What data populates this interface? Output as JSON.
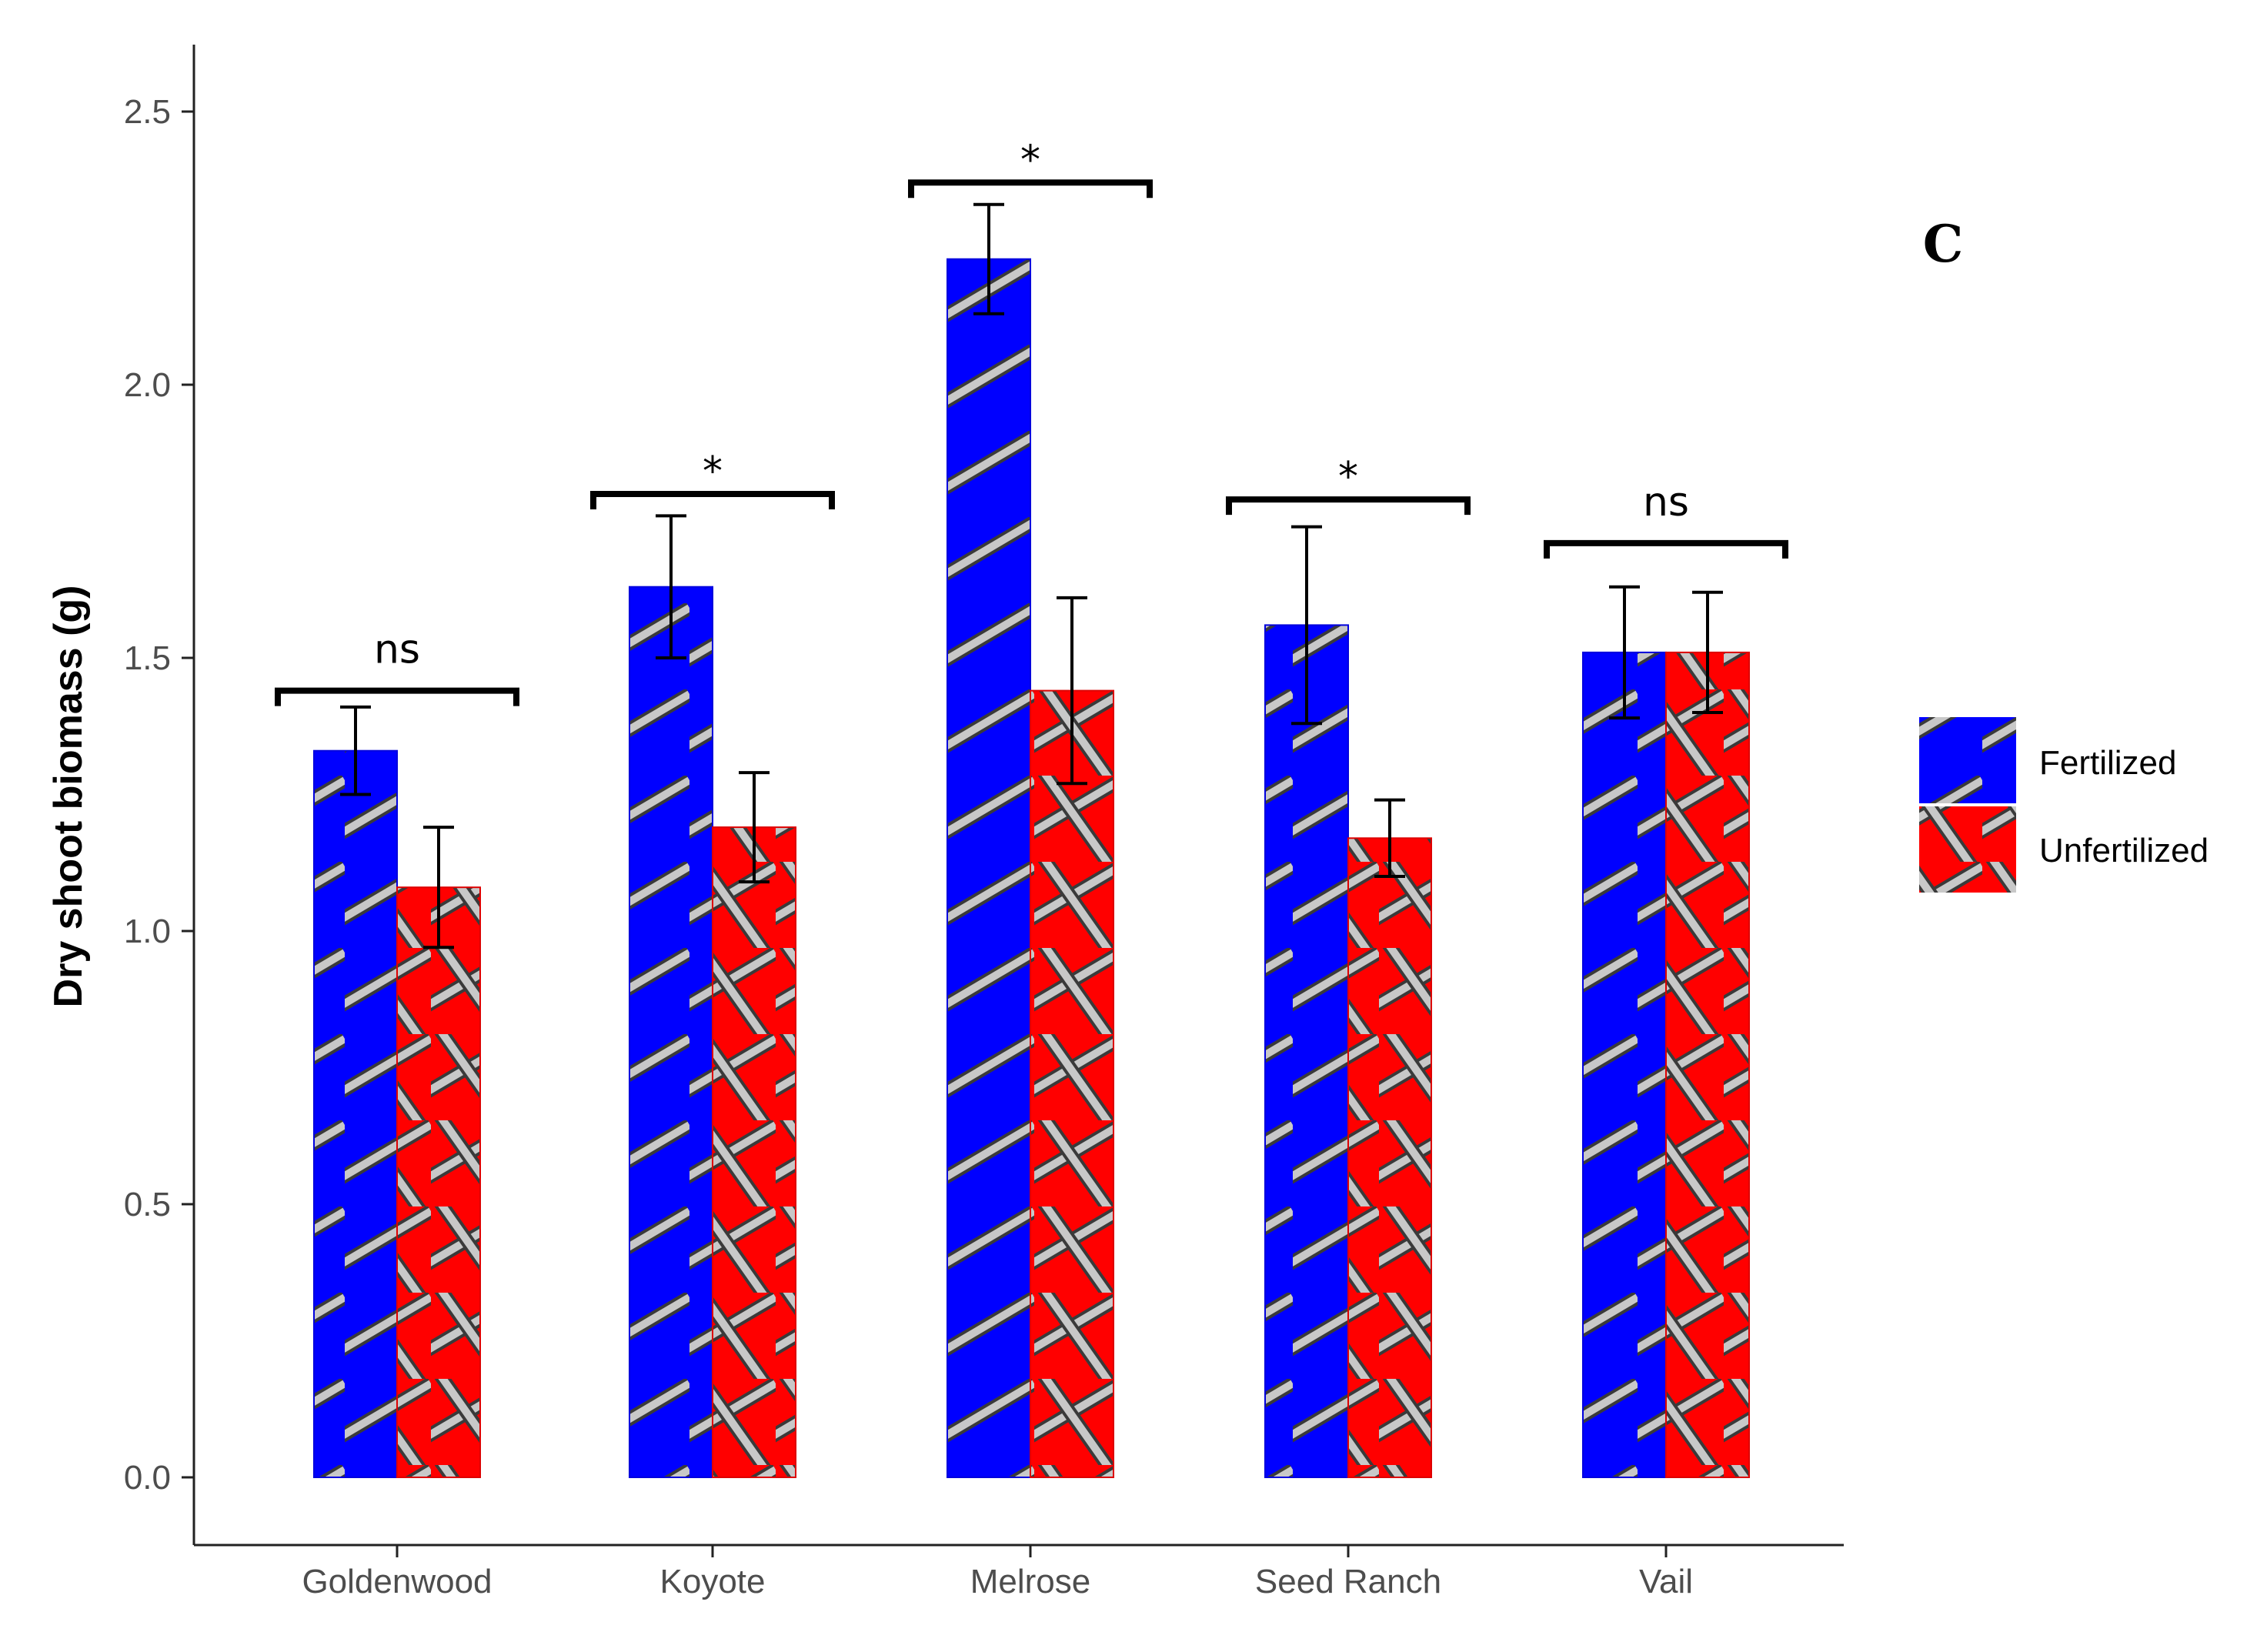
{
  "chart_data": {
    "type": "bar",
    "title": "",
    "panel_label": "C",
    "xlabel": "",
    "ylabel": "Dry shoot biomass (g)",
    "ylim": [
      0,
      2.5
    ],
    "yticks": [
      0.0,
      0.5,
      1.0,
      1.5,
      2.0,
      2.5
    ],
    "ytick_labels": [
      "0.0",
      "0.5",
      "1.0",
      "1.5",
      "2.0",
      "2.5"
    ],
    "categories": [
      "Goldenwood",
      "Koyote",
      "Melrose",
      "Seed Ranch",
      "Vail"
    ],
    "series": [
      {
        "name": "Fertilized",
        "color": "#0000ff",
        "pattern": "stripe",
        "values": [
          1.33,
          1.63,
          2.23,
          1.56,
          1.51
        ],
        "errors": [
          0.08,
          0.13,
          0.1,
          0.18,
          0.12
        ]
      },
      {
        "name": "Unfertilized",
        "color": "#ff0000",
        "pattern": "crosshatch",
        "values": [
          1.08,
          1.19,
          1.44,
          1.17,
          1.51
        ],
        "errors": [
          0.11,
          0.1,
          0.17,
          0.07,
          0.11
        ]
      }
    ],
    "significance": [
      {
        "category": "Goldenwood",
        "label": "ns",
        "level": 1.44
      },
      {
        "category": "Koyote",
        "label": "*",
        "level": 1.8
      },
      {
        "category": "Melrose",
        "label": "*",
        "level": 2.37
      },
      {
        "category": "Seed Ranch",
        "label": "*",
        "level": 1.79
      },
      {
        "category": "Vail",
        "label": "ns",
        "level": 1.71
      }
    ],
    "legend": {
      "position": "right",
      "entries": [
        "Fertilized",
        "Unfertilized"
      ]
    },
    "grid": false
  }
}
